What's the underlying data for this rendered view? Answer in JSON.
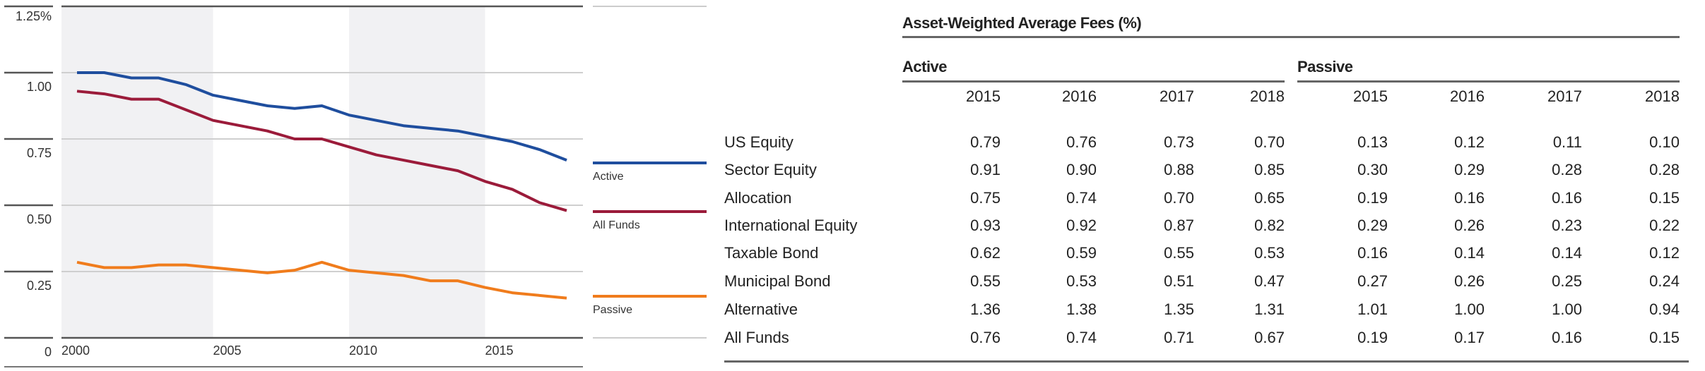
{
  "chart_data": {
    "type": "line",
    "title": "",
    "xlabel": "",
    "ylabel": "",
    "x": [
      2000,
      2001,
      2002,
      2003,
      2004,
      2005,
      2006,
      2007,
      2008,
      2009,
      2010,
      2011,
      2012,
      2013,
      2014,
      2015,
      2016,
      2017,
      2018
    ],
    "xticks": [
      "2000",
      "2005",
      "2010",
      "2015"
    ],
    "yticks": [
      "0",
      "0.25",
      "0.50",
      "0.75",
      "1.00",
      "1.25%"
    ],
    "ylim": [
      0,
      1.25
    ],
    "grid": true,
    "shaded_periods": [
      [
        1999.4,
        2005
      ],
      [
        2010,
        2015
      ]
    ],
    "legend_placement": "right",
    "series": [
      {
        "name": "Active",
        "color": "#1f4e9e",
        "values": [
          1.0,
          1.0,
          0.98,
          0.98,
          0.955,
          0.915,
          0.895,
          0.875,
          0.865,
          0.875,
          0.84,
          0.82,
          0.8,
          0.79,
          0.78,
          0.76,
          0.74,
          0.71,
          0.67
        ]
      },
      {
        "name": "All Funds",
        "color": "#9b1b3a",
        "values": [
          0.93,
          0.92,
          0.9,
          0.9,
          0.86,
          0.82,
          0.8,
          0.78,
          0.75,
          0.75,
          0.72,
          0.69,
          0.67,
          0.65,
          0.63,
          0.59,
          0.56,
          0.51,
          0.48
        ]
      },
      {
        "name": "Passive",
        "color": "#f07c1c",
        "values": [
          0.285,
          0.265,
          0.265,
          0.275,
          0.275,
          0.265,
          0.255,
          0.245,
          0.255,
          0.285,
          0.255,
          0.245,
          0.235,
          0.215,
          0.215,
          0.19,
          0.17,
          0.16,
          0.15
        ]
      }
    ]
  },
  "table": {
    "title": "Asset-Weighted Average Fees (%)",
    "groups": [
      "Active",
      "Passive"
    ],
    "years": [
      "2015",
      "2016",
      "2017",
      "2018"
    ],
    "rows": [
      {
        "label": "US Equity",
        "values": [
          "0.79",
          "0.76",
          "0.73",
          "0.70",
          "0.13",
          "0.12",
          "0.11",
          "0.10"
        ]
      },
      {
        "label": "Sector Equity",
        "values": [
          "0.91",
          "0.90",
          "0.88",
          "0.85",
          "0.30",
          "0.29",
          "0.28",
          "0.28"
        ]
      },
      {
        "label": "Allocation",
        "values": [
          "0.75",
          "0.74",
          "0.70",
          "0.65",
          "0.19",
          "0.16",
          "0.16",
          "0.15"
        ]
      },
      {
        "label": "International Equity",
        "values": [
          "0.93",
          "0.92",
          "0.87",
          "0.82",
          "0.29",
          "0.26",
          "0.23",
          "0.22"
        ]
      },
      {
        "label": "Taxable Bond",
        "values": [
          "0.62",
          "0.59",
          "0.55",
          "0.53",
          "0.16",
          "0.14",
          "0.14",
          "0.12"
        ]
      },
      {
        "label": "Municipal Bond",
        "values": [
          "0.55",
          "0.53",
          "0.51",
          "0.47",
          "0.27",
          "0.26",
          "0.25",
          "0.24"
        ]
      },
      {
        "label": "Alternative",
        "values": [
          "1.36",
          "1.38",
          "1.35",
          "1.31",
          "1.01",
          "1.00",
          "1.00",
          "0.94"
        ]
      },
      {
        "label": "All Funds",
        "values": [
          "0.76",
          "0.74",
          "0.71",
          "0.67",
          "0.19",
          "0.17",
          "0.16",
          "0.15"
        ]
      }
    ]
  }
}
